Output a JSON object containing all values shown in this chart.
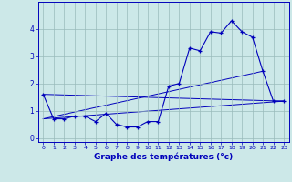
{
  "xlabel": "Graphe des températures (°c)",
  "hours": [
    0,
    1,
    2,
    3,
    4,
    5,
    6,
    7,
    8,
    9,
    10,
    11,
    12,
    13,
    14,
    15,
    16,
    17,
    18,
    19,
    20,
    21,
    22,
    23
  ],
  "temperatures": [
    1.6,
    0.7,
    0.7,
    0.8,
    0.8,
    0.6,
    0.9,
    0.5,
    0.4,
    0.4,
    0.6,
    0.6,
    1.9,
    2.0,
    3.3,
    3.2,
    3.9,
    3.85,
    4.3,
    3.9,
    3.7,
    2.45,
    1.35,
    1.35
  ],
  "line1_x": [
    0,
    23
  ],
  "line1_y": [
    1.6,
    1.35
  ],
  "line2_x": [
    0,
    21
  ],
  "line2_y": [
    0.7,
    2.45
  ],
  "line3_x": [
    0,
    23
  ],
  "line3_y": [
    0.7,
    1.35
  ],
  "bg_color": "#cce8e8",
  "line_color": "#0000bb",
  "grid_color": "#99bbbb",
  "ylim": [
    -0.15,
    5.0
  ],
  "xlim": [
    -0.5,
    23.5
  ],
  "yticks": [
    0,
    1,
    2,
    3,
    4
  ],
  "xticks": [
    0,
    1,
    2,
    3,
    4,
    5,
    6,
    7,
    8,
    9,
    10,
    11,
    12,
    13,
    14,
    15,
    16,
    17,
    18,
    19,
    20,
    21,
    22,
    23
  ]
}
